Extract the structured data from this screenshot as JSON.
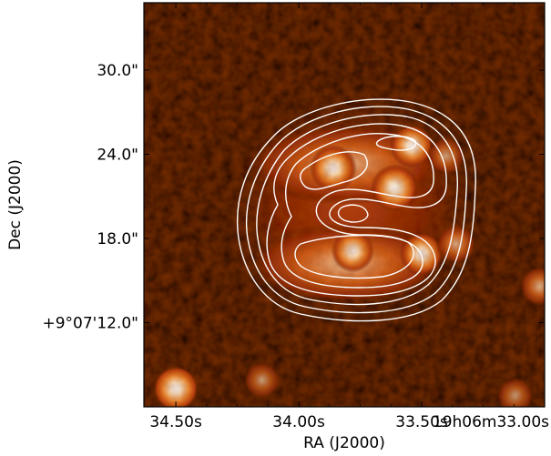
{
  "chart_data": {
    "type": "heatmap",
    "title": "",
    "xlabel": "RA (J2000)",
    "ylabel": "Dec (J2000)",
    "x_ticks": [
      "34.50s",
      "34.00s",
      "33.50s",
      "19h06m33.00s"
    ],
    "y_ticks": [
      "+9°07'12.0\"",
      "18.0\"",
      "24.0\"",
      "30.0\""
    ],
    "x_tick_values_s": [
      34.5,
      34.0,
      33.5,
      33.0
    ],
    "y_tick_values_arcsec": [
      12.0,
      18.0,
      24.0,
      30.0
    ],
    "xlim_s": [
      34.63,
      33.0
    ],
    "ylim_arcsec": [
      6.0,
      34.8
    ],
    "colormap": "gist_heat",
    "contour_color": "#ffffff",
    "grid": false,
    "sources": [
      {
        "ra_s": 33.86,
        "dec_arcsec": 23.0,
        "intensity": 1.0
      },
      {
        "ra_s": 33.61,
        "dec_arcsec": 21.6,
        "intensity": 1.0
      },
      {
        "ra_s": 33.54,
        "dec_arcsec": 24.6,
        "intensity": 0.85
      },
      {
        "ra_s": 33.4,
        "dec_arcsec": 23.9,
        "intensity": 0.6
      },
      {
        "ra_s": 33.78,
        "dec_arcsec": 17.1,
        "intensity": 0.8
      },
      {
        "ra_s": 33.5,
        "dec_arcsec": 16.9,
        "intensity": 0.85
      },
      {
        "ra_s": 33.36,
        "dec_arcsec": 17.6,
        "intensity": 0.7
      },
      {
        "ra_s": 34.5,
        "dec_arcsec": 7.3,
        "intensity": 1.0
      },
      {
        "ra_s": 34.15,
        "dec_arcsec": 7.9,
        "intensity": 0.55
      },
      {
        "ra_s": 33.12,
        "dec_arcsec": 6.8,
        "intensity": 0.55
      },
      {
        "ra_s": 33.02,
        "dec_arcsec": 14.6,
        "intensity": 0.7
      }
    ]
  }
}
